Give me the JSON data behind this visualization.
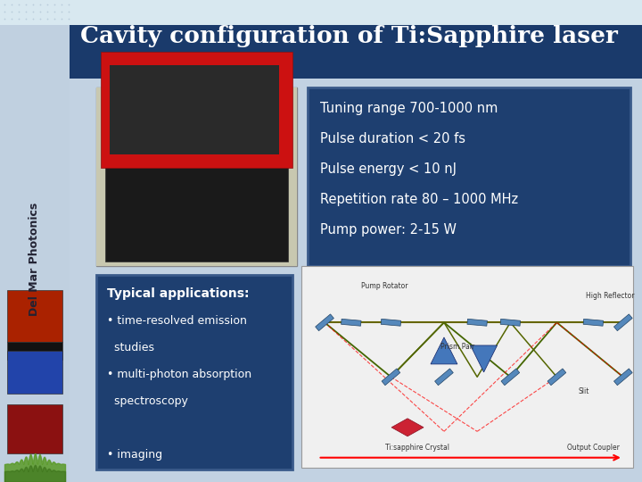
{
  "title": "Cavity configuration of Ti:Sapphire laser",
  "title_bg_color": "#1a3a6b",
  "title_text_color": "#ffffff",
  "slide_bg_color": "#c0d0e0",
  "top_strip_color": "#d8e8f0",
  "sidebar_bg_color": "#c0d0e0",
  "content_bg_color": "#c0d0e0",
  "sidebar_text": "Del Mar Photonics",
  "sidebar_text_color": "#222233",
  "dots_color": "#a0b8cc",
  "specs_box_bg": "#1e3f70",
  "specs_text_color": "#ffffff",
  "specs_lines": [
    "Tuning range 700-1000 nm",
    "Pulse duration < 20 fs",
    "Pulse energy < 10 nJ",
    "Repetition rate 80 – 1000 MHz",
    "Pump power: 2-15 W"
  ],
  "apps_box_bg": "#1e3f70",
  "apps_text_color": "#ffffff",
  "apps_title": "Typical applications:",
  "apps_lines": [
    "• time-resolved emission",
    "  studies",
    "• multi-photon absorption",
    "  spectroscopy",
    "",
    "• imaging"
  ],
  "wave_color1": "#5a9a28",
  "wave_color2": "#3a7018"
}
